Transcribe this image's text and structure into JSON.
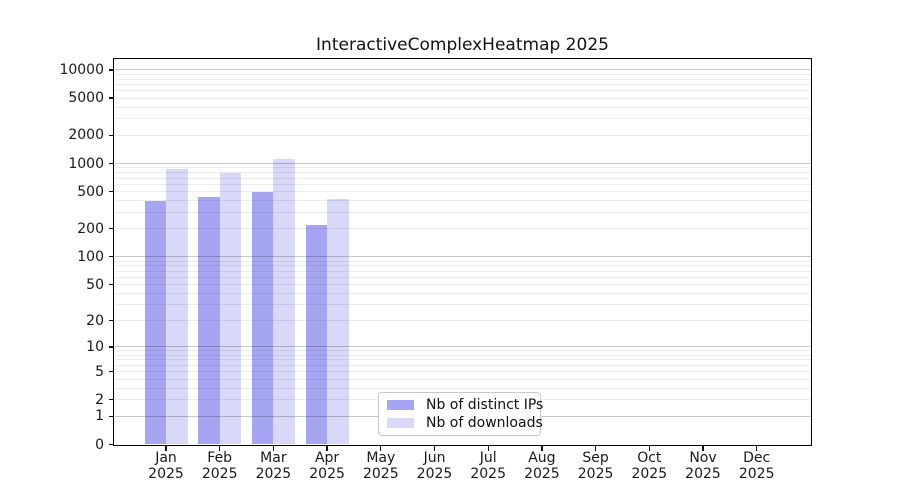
{
  "chart_data": {
    "type": "bar",
    "title": "InteractiveComplexHeatmap 2025",
    "categories": [
      "Jan 2025",
      "Feb 2025",
      "Mar 2025",
      "Apr 2025",
      "May 2025",
      "Jun 2025",
      "Jul 2025",
      "Aug 2025",
      "Sep 2025",
      "Oct 2025",
      "Nov 2025",
      "Dec 2025"
    ],
    "series": [
      {
        "name": "Nb of distinct IPs",
        "color": "#a5a5f2",
        "values": [
          400,
          435,
          500,
          220,
          null,
          null,
          null,
          null,
          null,
          null,
          null,
          null
        ]
      },
      {
        "name": "Nb of downloads",
        "color": "#d8d8f8",
        "values": [
          870,
          790,
          1120,
          420,
          null,
          null,
          null,
          null,
          null,
          null,
          null,
          null
        ]
      }
    ],
    "yscale": "pseudo-log (log10 of value+1), zero shown at axis bottom",
    "y_ticks": [
      0,
      1,
      2,
      5,
      10,
      20,
      50,
      100,
      200,
      500,
      1000,
      2000,
      5000,
      10000
    ],
    "ylim": [
      0,
      13000
    ],
    "xlabel": "",
    "ylabel": "",
    "grid": "on (major lines at powers of 10, faint minor lines at 2-9 per decade, drawn over bars)",
    "legend_position": "lower center, inside plot"
  },
  "colors": {
    "background": "#ffffff",
    "bar_distinct_ips": "#a5a5f2",
    "bar_downloads": "#d8d8f8",
    "major_grid": "#c9c9c9",
    "minor_grid": "#ededed",
    "spine": "#000000",
    "text": "#1a1a1a"
  }
}
